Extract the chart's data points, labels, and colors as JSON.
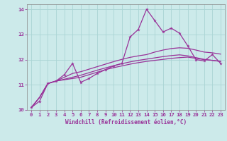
{
  "xlabel": "Windchill (Refroidissement éolien,°C)",
  "bg_color": "#cceaea",
  "grid_color": "#aad4d4",
  "line_color": "#993399",
  "xlim": [
    -0.5,
    23.5
  ],
  "ylim": [
    10.0,
    14.2
  ],
  "yticks": [
    10,
    11,
    12,
    13,
    14
  ],
  "xticks": [
    0,
    1,
    2,
    3,
    4,
    5,
    6,
    7,
    8,
    9,
    10,
    11,
    12,
    13,
    14,
    15,
    16,
    17,
    18,
    19,
    20,
    21,
    22,
    23
  ],
  "series1": [
    10.1,
    10.35,
    11.05,
    11.15,
    11.4,
    11.85,
    11.1,
    11.25,
    11.45,
    11.6,
    11.75,
    11.85,
    12.9,
    13.2,
    14.0,
    13.55,
    13.1,
    13.25,
    13.05,
    12.55,
    12.0,
    11.95,
    12.2,
    11.85
  ],
  "series2": [
    10.1,
    10.5,
    11.05,
    11.15,
    11.2,
    11.25,
    11.3,
    11.4,
    11.5,
    11.6,
    11.68,
    11.75,
    11.82,
    11.88,
    11.93,
    11.97,
    12.01,
    12.05,
    12.08,
    12.1,
    12.05,
    12.0,
    11.97,
    11.93
  ],
  "series3": [
    10.1,
    10.5,
    11.05,
    11.15,
    11.22,
    11.3,
    11.38,
    11.48,
    11.58,
    11.67,
    11.76,
    11.84,
    11.91,
    11.97,
    12.02,
    12.07,
    12.12,
    12.16,
    12.19,
    12.15,
    12.08,
    12.01,
    11.97,
    11.93
  ],
  "series4": [
    10.1,
    10.5,
    11.05,
    11.15,
    11.3,
    11.45,
    11.52,
    11.62,
    11.72,
    11.82,
    11.92,
    12.01,
    12.09,
    12.15,
    12.2,
    12.3,
    12.38,
    12.44,
    12.47,
    12.45,
    12.38,
    12.3,
    12.27,
    12.22
  ]
}
